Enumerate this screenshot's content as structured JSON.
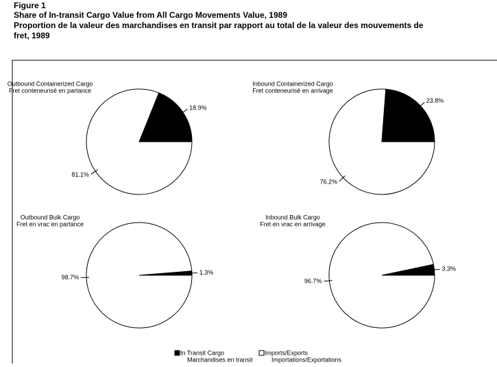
{
  "figure": {
    "label": "Figure 1",
    "title": [
      "Share of In-transit Cargo Value from All Cargo Movements Value, 1989",
      "Proportion de la valeur des marchandises en transit par rapport au total de la valeur des mouvements de",
      "fret, 1989"
    ]
  },
  "legend": [
    {
      "name": [
        "In Transit Cargo",
        "Marchandises en transit"
      ],
      "color": "#000000"
    },
    {
      "name": [
        "Imports/Exports",
        "Importations/Exportations"
      ],
      "color": "#ffffff"
    }
  ],
  "chart_data": [
    {
      "type": "pie",
      "title": [
        "Outbound Containerized Cargo",
        "Fret conteneurisé en partance"
      ],
      "values": [
        18.9,
        81.1
      ],
      "value_labels": [
        "18.9%",
        "81.1%"
      ],
      "colors": [
        "#000000",
        "#ffffff"
      ]
    },
    {
      "type": "pie",
      "title": [
        "Inbound Containerized Cargo",
        "Fret conteneurisé en arrivage"
      ],
      "values": [
        23.8,
        76.2
      ],
      "value_labels": [
        "23.8%",
        "76.2%"
      ],
      "colors": [
        "#000000",
        "#ffffff"
      ]
    },
    {
      "type": "pie",
      "title": [
        "Outbound Bulk Cargo",
        "Fret en vrac en partance"
      ],
      "values": [
        1.3,
        98.7
      ],
      "value_labels": [
        "1.3%",
        "98.7%"
      ],
      "colors": [
        "#000000",
        "#ffffff"
      ]
    },
    {
      "type": "pie",
      "title": [
        "Inbound Bulk Cargo",
        "Fret en vrac en arrivage"
      ],
      "values": [
        3.3,
        96.7
      ],
      "value_labels": [
        "3.3%",
        "96.7%"
      ],
      "colors": [
        "#000000",
        "#ffffff"
      ]
    }
  ]
}
